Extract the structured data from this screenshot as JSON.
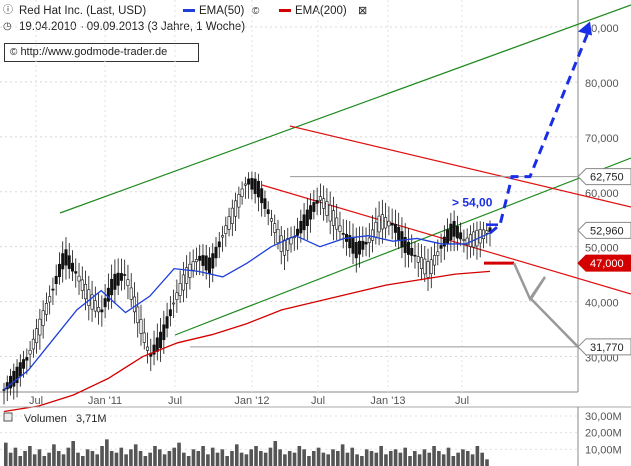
{
  "header": {
    "title": "Red Hat Inc. (Last, USD)",
    "period": "19.04.2010 - 09.09.2013 (3 Jahre, 1 Woche)",
    "url": "http://www.godmode-trader.de",
    "ema50_label": "EMA(50)",
    "ema200_label": "EMA(200)",
    "icons": [
      "info-icon",
      "clock-icon",
      "copyright-icon",
      "close-icon",
      "grid-icon"
    ]
  },
  "colors": {
    "price": "#111111",
    "ema50": "#1e3fd8",
    "ema200": "#d40000",
    "channel": "#1f8a1f",
    "downtrend": "#e01010",
    "forecast_blue": "#1a2ee6",
    "forecast_gray": "#999999",
    "level_line": "#999999"
  },
  "chart_data": [
    {
      "type": "line",
      "title": "Red Hat Inc. (Last, USD)",
      "x_axis": {
        "ticks": [
          "Jul",
          "Jan '11",
          "Jul",
          "Jan '12",
          "Jul",
          "Jan '13",
          "Jul"
        ]
      },
      "y_axis": {
        "min": 25000,
        "max": 92000,
        "ticks": [
          "30,000",
          "40,000",
          "50,000",
          "60,000",
          "70,000",
          "80,000",
          "90,000"
        ],
        "position": "right"
      },
      "series": [
        {
          "name": "EMA(50)",
          "values": [
            24.0,
            27.5,
            33.0,
            38.5,
            42.0,
            38.0,
            41.0,
            46.0,
            45.5,
            44.5,
            47.0,
            50.0,
            52.0,
            50.0,
            51.5,
            52.0,
            51.0,
            51.5,
            50.5,
            50.5,
            52.5
          ]
        },
        {
          "name": "EMA(200)",
          "values": [
            20.0,
            21.0,
            23.0,
            26.0,
            30.0,
            32.5,
            34.0,
            36.0,
            38.5,
            40.0,
            41.5,
            43.0,
            44.0,
            45.0,
            45.5
          ]
        }
      ],
      "price_values": [
        24,
        26,
        30,
        36,
        42,
        48,
        45,
        41,
        38,
        43,
        45,
        38,
        30,
        33,
        40,
        45,
        48,
        46,
        52,
        57,
        62,
        60,
        55,
        50,
        52,
        55,
        59,
        56,
        52,
        49,
        51,
        55,
        54,
        50,
        48,
        46,
        50,
        53,
        51,
        52,
        53
      ],
      "price_labels": [
        {
          "label": "62,750",
          "value": 62750
        },
        {
          "label": "52,960",
          "value": 52960
        },
        {
          "label": "47,000",
          "value": 47000
        },
        {
          "label": "31,770",
          "value": 31770
        }
      ],
      "annotations": [
        {
          "text": "> 54,00",
          "value": 54000
        }
      ],
      "support_levels": [
        62750,
        31770
      ],
      "legend": "top-left",
      "grid": true
    },
    {
      "type": "bar",
      "title": "Volumen",
      "subtitle": "3,71M",
      "y_axis": {
        "min": 0,
        "max": 30000000,
        "ticks": [
          "30,00M",
          "20,00M",
          "10,00M"
        ]
      },
      "values_m": [
        14,
        8,
        11,
        6,
        9,
        12,
        7,
        10,
        6,
        8,
        13,
        9,
        7,
        11,
        15,
        8,
        6,
        10,
        9,
        7,
        12,
        16,
        9,
        8,
        11,
        7,
        10,
        13,
        9,
        6,
        8,
        12,
        10,
        7,
        9,
        11,
        14,
        8,
        6,
        10,
        9,
        12,
        7,
        11,
        8,
        10,
        6,
        9,
        13,
        8,
        7,
        10,
        12,
        9,
        8,
        11,
        15,
        10,
        7,
        9,
        8,
        12,
        10,
        6,
        9,
        11,
        8,
        7,
        10,
        9,
        13,
        8,
        11,
        7,
        6,
        10,
        9,
        8,
        12,
        7,
        9,
        10,
        8,
        11,
        6,
        9,
        7,
        10,
        8,
        12,
        9,
        7,
        11,
        6,
        8,
        10,
        9,
        7,
        12,
        8,
        4
      ]
    }
  ]
}
